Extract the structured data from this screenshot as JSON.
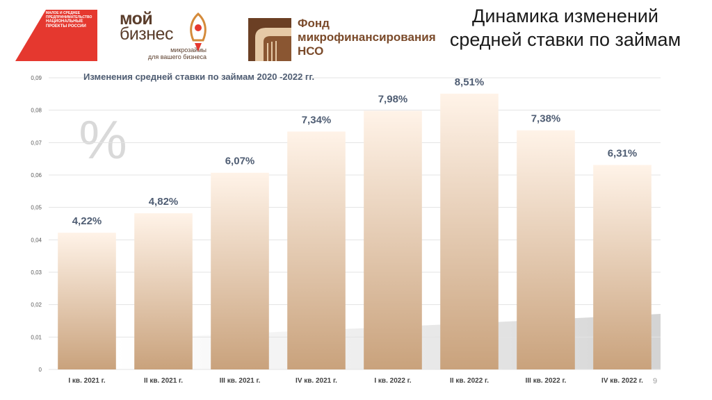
{
  "page_title": "Динамика изменений средней ставки по займам",
  "logos": {
    "np_lines": [
      "МАЛОЕ И СРЕДНЕЕ",
      "ПРЕДПРИНИМАТЕЛЬСТВО"
    ],
    "np_big": "НАЦИОНАЛЬНЫЕ ПРОЕКТЫ РОССИИ",
    "mb_line1": "мой",
    "mb_line2": "бизнес",
    "mb_sub1": "микрозаймы",
    "mb_sub2": "для вашего бизнеса",
    "fund_line1": "Фонд",
    "fund_line2": "микрофинансирования",
    "fund_line3": "НСО"
  },
  "page_number": "9",
  "colors": {
    "bar_top": "#fff3e8",
    "bar_bottom": "#c9a27c",
    "label": "#4f5d73",
    "grid": "#e3e3e3"
  },
  "chart_data": {
    "type": "bar",
    "title": "Изменения средней ставки по займам 2020 -2022 гг.",
    "categories": [
      "I кв. 2021 г.",
      "II кв. 2021 г.",
      "III кв. 2021 г.",
      "IV кв. 2021 г.",
      "I кв. 2022 г.",
      "II кв. 2022 г.",
      "III кв. 2022 г.",
      "IV кв. 2022 г."
    ],
    "values": [
      0.0422,
      0.0482,
      0.0607,
      0.0734,
      0.0798,
      0.0851,
      0.0738,
      0.0631
    ],
    "data_labels": [
      "4,22%",
      "4,82%",
      "6,07%",
      "7,34%",
      "7,98%",
      "8,51%",
      "7,38%",
      "6,31%"
    ],
    "ylim": [
      0,
      0.09
    ],
    "yticks": [
      0,
      0.01,
      0.02,
      0.03,
      0.04,
      0.05,
      0.06,
      0.07,
      0.08,
      0.09
    ],
    "ytick_labels": [
      "0",
      "0,01",
      "0,02",
      "0,03",
      "0,04",
      "0,05",
      "0,06",
      "0,07",
      "0,08",
      "0,09"
    ],
    "grid": true,
    "decor_symbol": "%"
  }
}
